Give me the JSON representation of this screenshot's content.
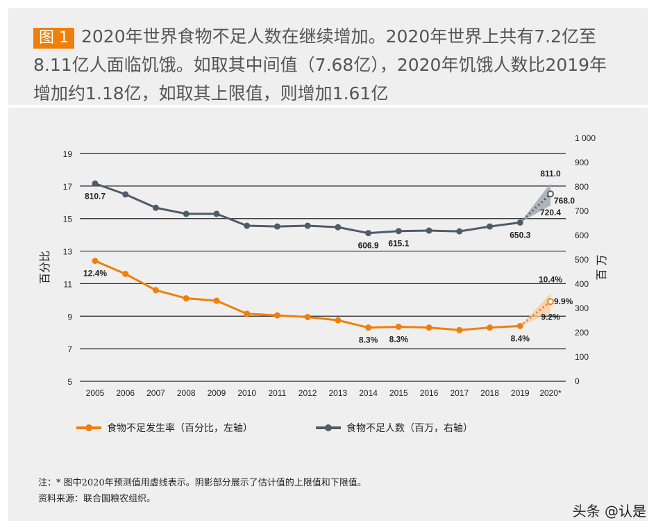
{
  "figure": {
    "tag": "图 1",
    "title": "2020年世界食物不足人数在继续增加。2020年世界上共有7.2亿至8.11亿人面临饥饿。如取其中间值（7.68亿），2020年饥饿人数比2019年增加约1.18亿，如取其上限值，则增加1.61亿"
  },
  "chart_data": {
    "type": "line",
    "categories": [
      "2005",
      "2006",
      "2007",
      "2008",
      "2009",
      "2010",
      "2011",
      "2012",
      "2013",
      "2014",
      "2015",
      "2016",
      "2017",
      "2018",
      "2019",
      "2020*"
    ],
    "left_axis": {
      "label": "百分比",
      "range": [
        5,
        19
      ],
      "ticks": [
        5,
        7,
        9,
        11,
        13,
        15,
        17,
        19
      ]
    },
    "right_axis": {
      "label": "百万",
      "range": [
        0,
        1000
      ],
      "ticks": [
        "0",
        "100",
        "200",
        "300",
        "400",
        "500",
        "600",
        "700",
        "800",
        "900",
        "1 000"
      ]
    },
    "grid": true,
    "legend_placement": "bottom",
    "series": [
      {
        "name": "食物不足发生率（百分比，左轴）",
        "axis": "left",
        "color": "#f07f09",
        "values": [
          12.4,
          11.6,
          10.6,
          10.1,
          9.95,
          9.15,
          9.05,
          8.95,
          8.75,
          8.3,
          8.35,
          8.3,
          8.15,
          8.3,
          8.4,
          9.9
        ],
        "projection_range_2020": [
          9.2,
          10.4
        ],
        "data_labels": {
          "0": "12.4%",
          "9": "8.3%",
          "10": "8.3%",
          "14": "8.4%",
          "15": "9.9%",
          "upper": "10.4%",
          "lower": "9.2%"
        }
      },
      {
        "name": "食物不足人数（百万，右轴）",
        "axis": "right",
        "color": "#4f5b68",
        "values": [
          810.7,
          766,
          711,
          686,
          686,
          637,
          634,
          637,
          631,
          606.9,
          615.1,
          617,
          614,
          634,
          650.3,
          768.0
        ],
        "projection_range_2020": [
          720.4,
          811.0
        ],
        "data_labels": {
          "0": "810.7",
          "9": "606.9",
          "10": "615.1",
          "14": "650.3",
          "15": "768.0",
          "upper": "811.0",
          "lower": "720.4"
        }
      }
    ]
  },
  "notes": {
    "note": "注：* 图中2020年预测值用虚线表示。阴影部分展示了估计值的上限值和下限值。",
    "source": "资料来源：联合国粮农组织。"
  },
  "watermark": "头条 @认是"
}
